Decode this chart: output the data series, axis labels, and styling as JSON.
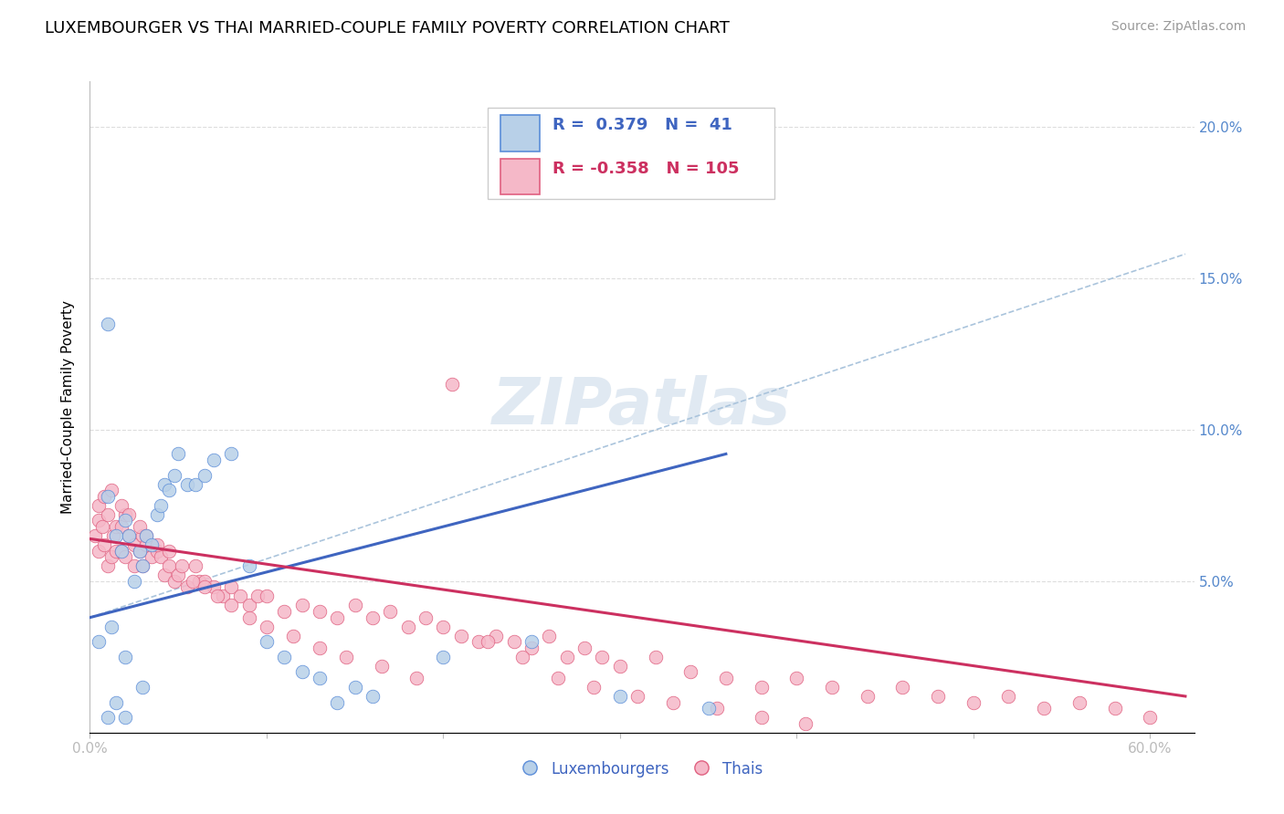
{
  "title": "LUXEMBOURGER VS THAI MARRIED-COUPLE FAMILY POVERTY CORRELATION CHART",
  "source": "Source: ZipAtlas.com",
  "ylabel": "Married-Couple Family Poverty",
  "xlim": [
    0.0,
    0.625
  ],
  "ylim": [
    0.0,
    0.215
  ],
  "x_ticks": [
    0.0,
    0.1,
    0.2,
    0.3,
    0.4,
    0.5,
    0.6
  ],
  "y_ticks": [
    0.0,
    0.05,
    0.1,
    0.15,
    0.2
  ],
  "blue_R": 0.379,
  "blue_N": 41,
  "pink_R": -0.358,
  "pink_N": 105,
  "blue_fill_color": "#b8d0e8",
  "pink_fill_color": "#f5b8c8",
  "blue_edge_color": "#5b8dd9",
  "pink_edge_color": "#e06080",
  "blue_line_color": "#3f65c0",
  "pink_line_color": "#cc3060",
  "dash_line_color": "#aac4dc",
  "legend_label_blue": "Luxembourgers",
  "legend_label_pink": "Thais",
  "watermark_text": "ZIPatlas",
  "blue_scatter_x": [
    0.005,
    0.01,
    0.01,
    0.012,
    0.015,
    0.015,
    0.018,
    0.02,
    0.02,
    0.022,
    0.025,
    0.028,
    0.03,
    0.03,
    0.032,
    0.035,
    0.038,
    0.04,
    0.042,
    0.045,
    0.048,
    0.05,
    0.055,
    0.06,
    0.065,
    0.07,
    0.08,
    0.09,
    0.1,
    0.11,
    0.12,
    0.13,
    0.14,
    0.15,
    0.16,
    0.2,
    0.25,
    0.3,
    0.35,
    0.01,
    0.02
  ],
  "blue_scatter_y": [
    0.03,
    0.135,
    0.005,
    0.035,
    0.065,
    0.01,
    0.06,
    0.07,
    0.005,
    0.065,
    0.05,
    0.06,
    0.055,
    0.015,
    0.065,
    0.062,
    0.072,
    0.075,
    0.082,
    0.08,
    0.085,
    0.092,
    0.082,
    0.082,
    0.085,
    0.09,
    0.092,
    0.055,
    0.03,
    0.025,
    0.02,
    0.018,
    0.01,
    0.015,
    0.012,
    0.025,
    0.03,
    0.012,
    0.008,
    0.078,
    0.025
  ],
  "pink_scatter_x": [
    0.003,
    0.005,
    0.005,
    0.007,
    0.008,
    0.01,
    0.01,
    0.012,
    0.013,
    0.015,
    0.015,
    0.018,
    0.018,
    0.02,
    0.02,
    0.022,
    0.025,
    0.025,
    0.028,
    0.03,
    0.03,
    0.032,
    0.035,
    0.038,
    0.04,
    0.042,
    0.045,
    0.048,
    0.05,
    0.055,
    0.06,
    0.062,
    0.065,
    0.07,
    0.075,
    0.08,
    0.085,
    0.09,
    0.095,
    0.1,
    0.11,
    0.12,
    0.13,
    0.14,
    0.15,
    0.16,
    0.17,
    0.18,
    0.19,
    0.2,
    0.21,
    0.22,
    0.23,
    0.24,
    0.25,
    0.26,
    0.27,
    0.28,
    0.29,
    0.3,
    0.32,
    0.34,
    0.36,
    0.38,
    0.4,
    0.42,
    0.44,
    0.46,
    0.48,
    0.5,
    0.52,
    0.54,
    0.56,
    0.58,
    0.6,
    0.005,
    0.008,
    0.012,
    0.018,
    0.022,
    0.028,
    0.032,
    0.038,
    0.045,
    0.052,
    0.058,
    0.065,
    0.072,
    0.08,
    0.09,
    0.1,
    0.115,
    0.13,
    0.145,
    0.165,
    0.185,
    0.205,
    0.225,
    0.245,
    0.265,
    0.285,
    0.31,
    0.33,
    0.355,
    0.38,
    0.405
  ],
  "pink_scatter_y": [
    0.065,
    0.07,
    0.06,
    0.068,
    0.062,
    0.072,
    0.055,
    0.058,
    0.065,
    0.068,
    0.06,
    0.068,
    0.06,
    0.072,
    0.058,
    0.065,
    0.062,
    0.055,
    0.06,
    0.065,
    0.055,
    0.062,
    0.058,
    0.06,
    0.058,
    0.052,
    0.055,
    0.05,
    0.052,
    0.048,
    0.055,
    0.05,
    0.05,
    0.048,
    0.045,
    0.048,
    0.045,
    0.042,
    0.045,
    0.045,
    0.04,
    0.042,
    0.04,
    0.038,
    0.042,
    0.038,
    0.04,
    0.035,
    0.038,
    0.035,
    0.032,
    0.03,
    0.032,
    0.03,
    0.028,
    0.032,
    0.025,
    0.028,
    0.025,
    0.022,
    0.025,
    0.02,
    0.018,
    0.015,
    0.018,
    0.015,
    0.012,
    0.015,
    0.012,
    0.01,
    0.012,
    0.008,
    0.01,
    0.008,
    0.005,
    0.075,
    0.078,
    0.08,
    0.075,
    0.072,
    0.068,
    0.065,
    0.062,
    0.06,
    0.055,
    0.05,
    0.048,
    0.045,
    0.042,
    0.038,
    0.035,
    0.032,
    0.028,
    0.025,
    0.022,
    0.018,
    0.115,
    0.03,
    0.025,
    0.018,
    0.015,
    0.012,
    0.01,
    0.008,
    0.005,
    0.003
  ],
  "blue_trend_x": [
    0.0,
    0.36
  ],
  "blue_trend_y": [
    0.038,
    0.092
  ],
  "pink_trend_x": [
    0.0,
    0.62
  ],
  "pink_trend_y": [
    0.064,
    0.012
  ],
  "dash_trend_x": [
    0.0,
    0.62
  ],
  "dash_trend_y": [
    0.038,
    0.158
  ],
  "title_fontsize": 13,
  "axis_label_fontsize": 11,
  "tick_fontsize": 11,
  "legend_fontsize": 12,
  "source_fontsize": 10,
  "tick_color": "#5588cc",
  "grid_color": "#dddddd"
}
